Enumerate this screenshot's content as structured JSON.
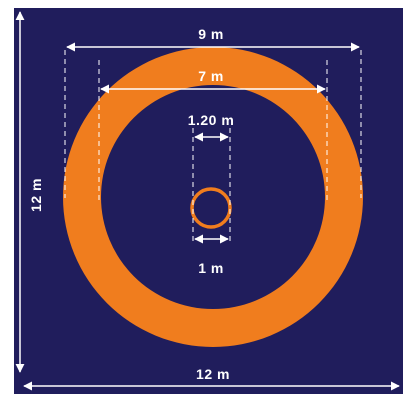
{
  "labels": {
    "outer_diameter": "9 m",
    "inner_diameter": "7 m",
    "spacing": "1.20 m",
    "small_ring": "1 m",
    "field_height": "12 m",
    "field_width": "12 m"
  },
  "colors": {
    "field": "#201d5c",
    "ring": "#f07d1e",
    "line": "#ffffff",
    "background": "#ffffff"
  }
}
